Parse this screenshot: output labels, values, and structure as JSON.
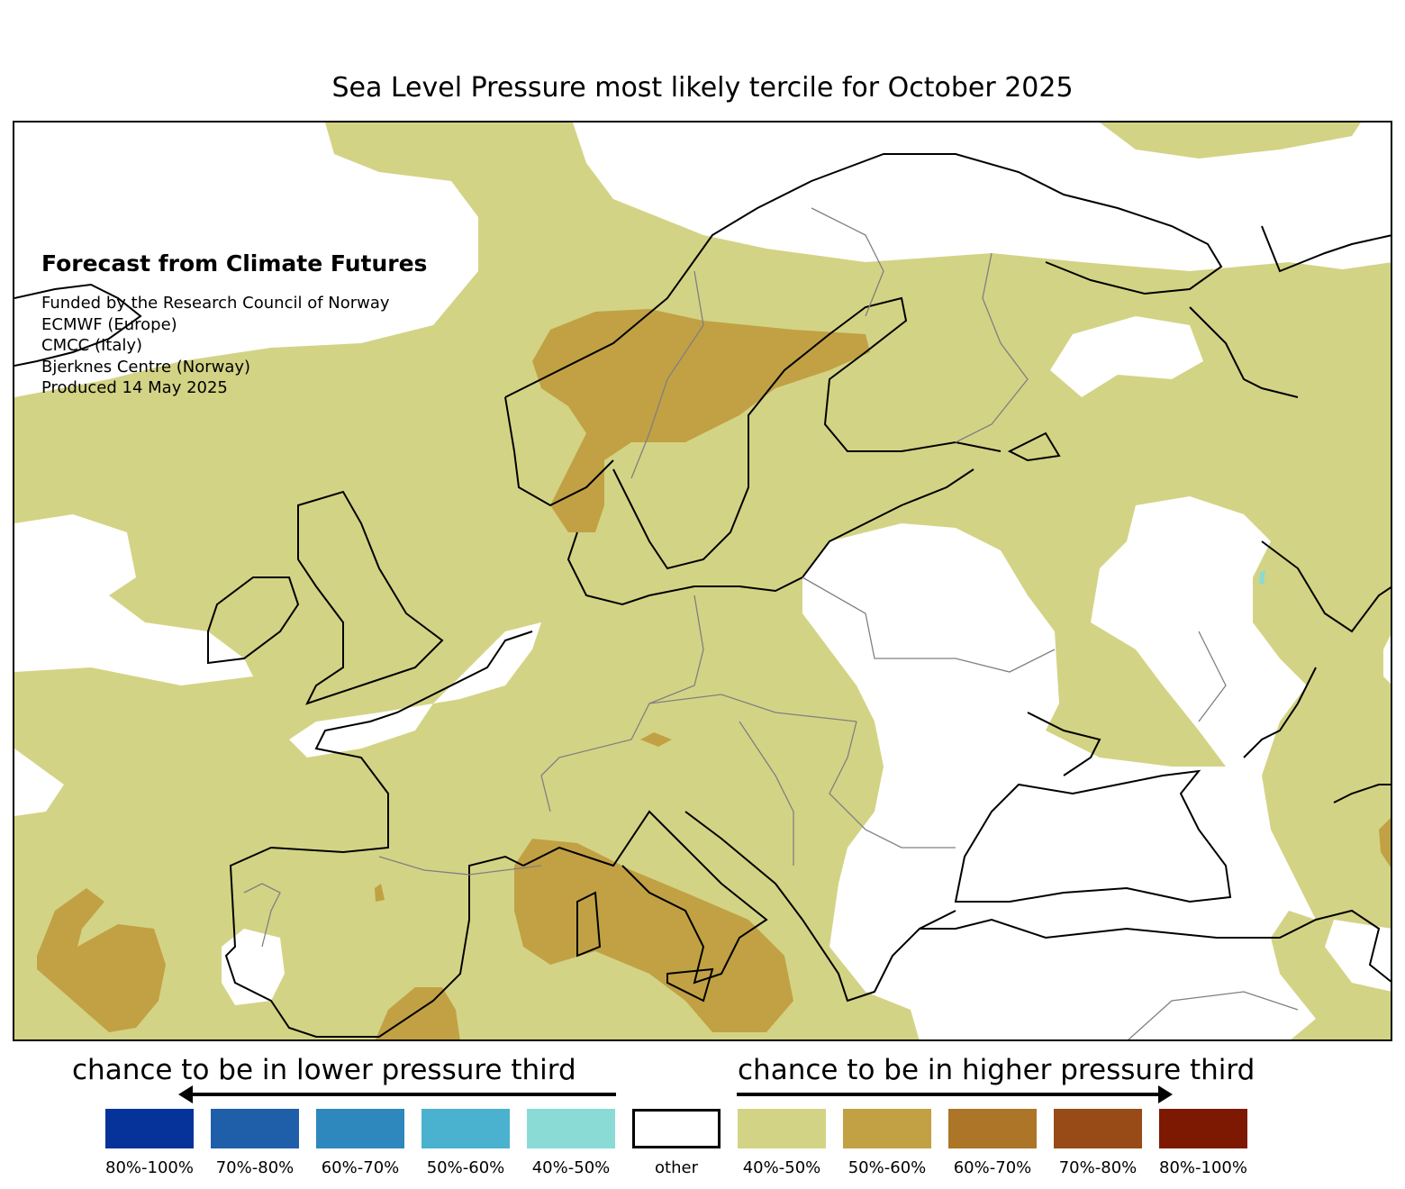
{
  "title": "Sea Level Pressure most likely tercile for October 2025",
  "info": {
    "heading": "Forecast from Climate Futures",
    "lines": [
      "Funded by the Research Council of Norway",
      "ECMWF (Europe)",
      "CMCC (Italy)",
      "Bjerknes Centre (Norway)",
      "Produced 14 May 2025"
    ]
  },
  "legend": {
    "lower_title": "chance to be in lower pressure third",
    "higher_title": "chance to be in higher pressure third",
    "items": [
      {
        "label": "80%-100%",
        "color": "#063399"
      },
      {
        "label": "70%-80%",
        "color": "#1f5faa"
      },
      {
        "label": "60%-70%",
        "color": "#2e88bd"
      },
      {
        "label": "50%-60%",
        "color": "#4ab1cf"
      },
      {
        "label": "40%-50%",
        "color": "#8adad6"
      },
      {
        "label": "other",
        "color": "#ffffff"
      },
      {
        "label": "40%-50%",
        "color": "#d3d385"
      },
      {
        "label": "50%-60%",
        "color": "#c1a144"
      },
      {
        "label": "60%-70%",
        "color": "#ad7527"
      },
      {
        "label": "70%-80%",
        "color": "#984b17"
      },
      {
        "label": "80%-100%",
        "color": "#7d1903"
      }
    ]
  }
}
